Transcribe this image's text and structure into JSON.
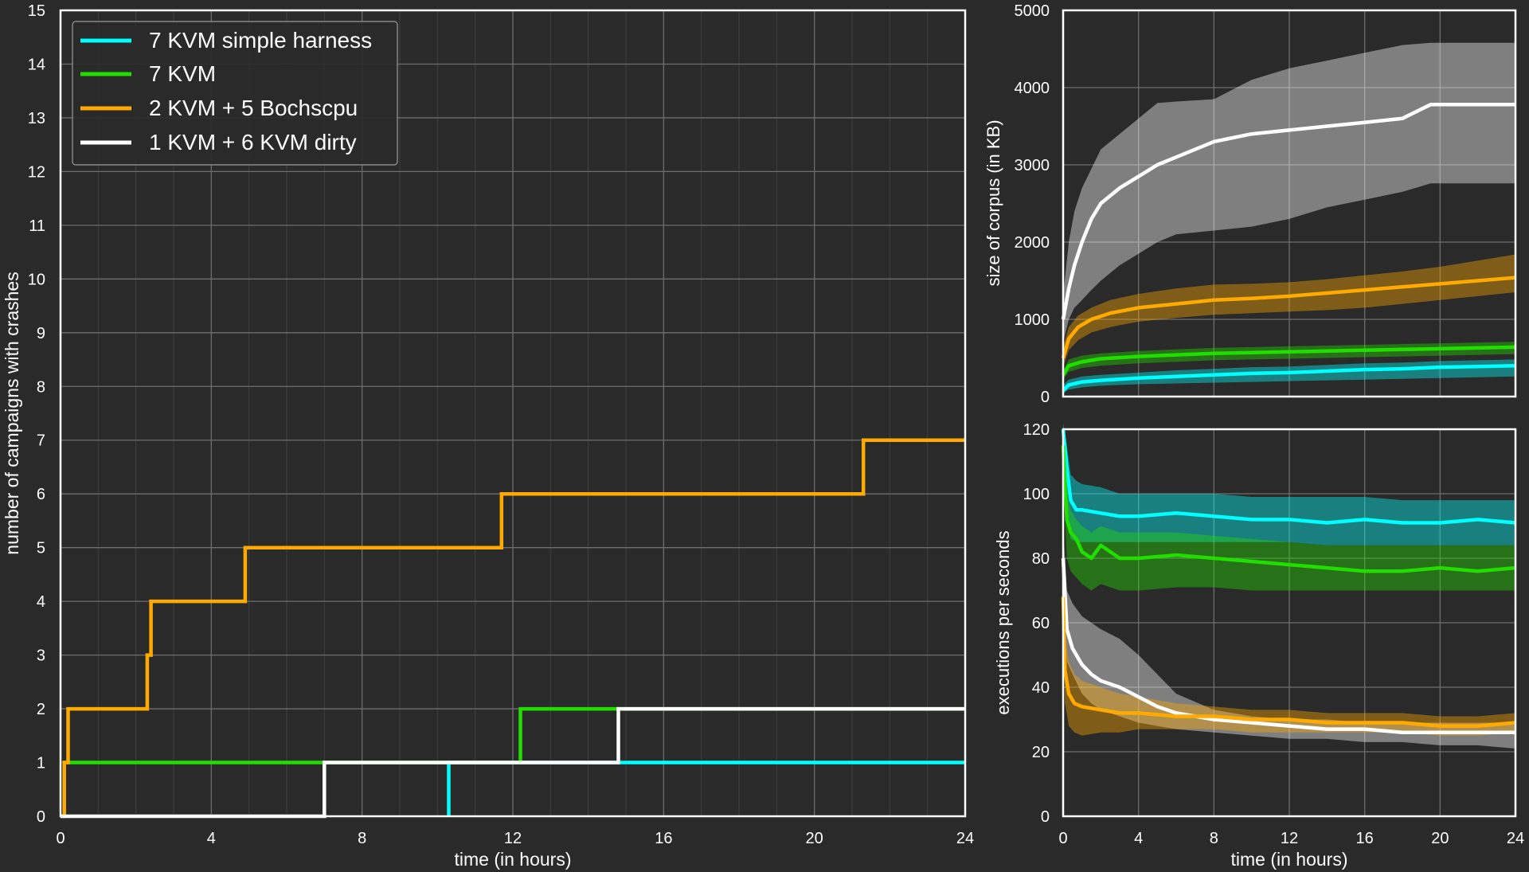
{
  "chart_data": [
    {
      "type": "line",
      "step": true,
      "xlabel": "time (in hours)",
      "ylabel": "number of campaigns with crashes",
      "xlim": [
        0,
        24
      ],
      "ylim": [
        0,
        15
      ],
      "xticks": [
        0,
        4,
        8,
        12,
        16,
        20,
        24
      ],
      "yticks": [
        0,
        1,
        2,
        3,
        4,
        5,
        6,
        7,
        8,
        9,
        10,
        11,
        12,
        13,
        14,
        15
      ],
      "grid": true,
      "legend_position": "top-left",
      "legend": [
        "7 KVM simple harness",
        "7 KVM",
        "2 KVM + 5 Bochscpu",
        "1 KVM + 6 KVM dirty"
      ],
      "series": [
        {
          "name": "7 KVM simple harness",
          "color": "#00ffff",
          "points": [
            [
              10.3,
              0
            ],
            [
              10.3,
              1
            ],
            [
              24,
              1
            ]
          ]
        },
        {
          "name": "7 KVM",
          "color": "#22dd00",
          "points": [
            [
              0.1,
              0
            ],
            [
              0.1,
              1
            ],
            [
              12.2,
              1
            ],
            [
              12.2,
              2
            ],
            [
              24,
              2
            ]
          ]
        },
        {
          "name": "2 KVM + 5 Bochscpu",
          "color": "#ffaa00",
          "points": [
            [
              0,
              0
            ],
            [
              0.1,
              0
            ],
            [
              0.1,
              1
            ],
            [
              0.2,
              1
            ],
            [
              0.2,
              2
            ],
            [
              2.3,
              2
            ],
            [
              2.3,
              3
            ],
            [
              2.4,
              3
            ],
            [
              2.4,
              4
            ],
            [
              4.9,
              4
            ],
            [
              4.9,
              5
            ],
            [
              11.7,
              5
            ],
            [
              11.7,
              6
            ],
            [
              21.3,
              6
            ],
            [
              21.3,
              7
            ],
            [
              24,
              7
            ]
          ]
        },
        {
          "name": "1 KVM + 6 KVM dirty",
          "color": "#ffffff",
          "points": [
            [
              0,
              0
            ],
            [
              7.0,
              0
            ],
            [
              7.0,
              1
            ],
            [
              14.8,
              1
            ],
            [
              14.8,
              2
            ],
            [
              24,
              2
            ]
          ]
        }
      ]
    },
    {
      "type": "line",
      "ylabel": "size of corpus (in KB)",
      "xlim": [
        0,
        24
      ],
      "ylim": [
        0,
        5000
      ],
      "yticks": [
        0,
        1000,
        2000,
        3000,
        4000,
        5000
      ],
      "grid": true,
      "series": [
        {
          "name": "1 KVM + 6 KVM dirty",
          "color": "#ffffff",
          "x": [
            0,
            0.3,
            0.6,
            1,
            1.5,
            2,
            3,
            4,
            5,
            6,
            8,
            10,
            12,
            14,
            16,
            18,
            19.5,
            24
          ],
          "y": [
            1000,
            1400,
            1700,
            2000,
            2300,
            2500,
            2700,
            2850,
            3000,
            3100,
            3300,
            3400,
            3450,
            3500,
            3550,
            3600,
            3780,
            3780
          ],
          "low": [
            700,
            1000,
            1150,
            1250,
            1380,
            1500,
            1700,
            1850,
            2000,
            2100,
            2150,
            2200,
            2300,
            2450,
            2550,
            2650,
            2760,
            2760
          ],
          "high": [
            1300,
            2000,
            2400,
            2700,
            2950,
            3200,
            3400,
            3600,
            3800,
            3820,
            3850,
            4100,
            4250,
            4350,
            4450,
            4550,
            4580,
            4580
          ]
        },
        {
          "name": "2 KVM + 5 Bochscpu",
          "color": "#ffaa00",
          "x": [
            0,
            0.3,
            0.8,
            1.5,
            2.5,
            4,
            6,
            8,
            10,
            12,
            14,
            16,
            18,
            20,
            22,
            24
          ],
          "y": [
            500,
            750,
            900,
            1000,
            1080,
            1150,
            1200,
            1250,
            1270,
            1300,
            1340,
            1380,
            1420,
            1460,
            1500,
            1540
          ],
          "low": [
            380,
            600,
            730,
            830,
            900,
            970,
            1020,
            1060,
            1080,
            1100,
            1120,
            1150,
            1200,
            1250,
            1300,
            1350
          ],
          "high": [
            650,
            900,
            1050,
            1150,
            1250,
            1330,
            1400,
            1450,
            1460,
            1480,
            1520,
            1570,
            1620,
            1680,
            1760,
            1840
          ]
        },
        {
          "name": "7 KVM",
          "color": "#22dd00",
          "x": [
            0,
            0.3,
            1,
            2,
            4,
            6,
            8,
            10,
            12,
            14,
            16,
            18,
            20,
            22,
            24
          ],
          "y": [
            280,
            400,
            450,
            490,
            520,
            540,
            560,
            570,
            580,
            590,
            600,
            610,
            620,
            630,
            640
          ],
          "low": [
            220,
            320,
            370,
            400,
            430,
            450,
            470,
            480,
            490,
            500,
            510,
            520,
            530,
            540,
            550
          ],
          "high": [
            340,
            480,
            530,
            560,
            590,
            610,
            630,
            640,
            650,
            660,
            670,
            680,
            690,
            700,
            710
          ]
        },
        {
          "name": "7 KVM simple harness",
          "color": "#00ffff",
          "x": [
            0,
            0.3,
            1,
            2,
            4,
            6,
            8,
            10,
            12,
            14,
            16,
            18,
            20,
            22,
            24
          ],
          "y": [
            80,
            150,
            190,
            210,
            240,
            260,
            280,
            300,
            310,
            330,
            350,
            360,
            380,
            390,
            400
          ],
          "low": [
            40,
            90,
            120,
            140,
            160,
            170,
            180,
            190,
            200,
            210,
            220,
            230,
            240,
            250,
            260
          ],
          "high": [
            150,
            220,
            260,
            280,
            310,
            340,
            360,
            380,
            390,
            410,
            430,
            440,
            460,
            470,
            480
          ]
        }
      ]
    },
    {
      "type": "line",
      "xlabel": "time (in hours)",
      "ylabel": "executions per seconds",
      "xlim": [
        0,
        24
      ],
      "ylim": [
        0,
        120
      ],
      "xticks": [
        0,
        4,
        8,
        12,
        16,
        20,
        24
      ],
      "yticks": [
        0,
        20,
        40,
        60,
        80,
        100,
        120
      ],
      "grid": true,
      "series": [
        {
          "name": "7 KVM simple harness",
          "color": "#00ffff",
          "x": [
            0,
            0.2,
            0.4,
            0.7,
            1,
            2,
            3,
            4,
            6,
            8,
            10,
            12,
            14,
            16,
            18,
            20,
            22,
            24
          ],
          "y": [
            120,
            108,
            98,
            95,
            95,
            94,
            93,
            93,
            94,
            93,
            92,
            92,
            91,
            92,
            91,
            91,
            92,
            91
          ],
          "low": [
            110,
            95,
            86,
            85,
            85,
            85,
            85,
            85,
            85,
            85,
            85,
            85,
            84,
            84,
            84,
            84,
            84,
            84
          ],
          "high": [
            122,
            115,
            106,
            104,
            103,
            102,
            100,
            100,
            100,
            100,
            99,
            99,
            99,
            99,
            98,
            98,
            98,
            98
          ]
        },
        {
          "name": "7 KVM",
          "color": "#22dd00",
          "x": [
            0,
            0.2,
            0.4,
            0.7,
            1,
            1.5,
            2,
            3,
            4,
            6,
            8,
            10,
            12,
            14,
            16,
            18,
            20,
            22,
            24
          ],
          "y": [
            115,
            92,
            88,
            86,
            82,
            80,
            84,
            80,
            80,
            81,
            80,
            79,
            78,
            77,
            76,
            76,
            77,
            76,
            77
          ],
          "low": [
            105,
            80,
            76,
            74,
            72,
            70,
            72,
            70,
            70,
            71,
            71,
            70,
            70,
            70,
            70,
            70,
            70,
            70,
            70
          ],
          "high": [
            120,
            100,
            95,
            92,
            90,
            88,
            90,
            88,
            88,
            88,
            87,
            86,
            85,
            84,
            84,
            84,
            84,
            84,
            84
          ]
        },
        {
          "name": "1 KVM + 6 KVM dirty",
          "color": "#ffffff",
          "x": [
            0,
            0.2,
            0.5,
            1,
            1.5,
            2,
            3,
            4,
            5,
            6,
            8,
            10,
            12,
            14,
            16,
            18,
            20,
            22,
            24
          ],
          "y": [
            80,
            58,
            52,
            47,
            44,
            42,
            40,
            37,
            34,
            32,
            30,
            29,
            28,
            27,
            27,
            26,
            26,
            26,
            26
          ],
          "low": [
            68,
            48,
            44,
            38,
            35,
            33,
            31,
            29,
            28,
            27,
            26,
            25,
            24,
            24,
            23,
            23,
            22,
            22,
            21
          ],
          "high": [
            90,
            70,
            66,
            62,
            60,
            58,
            55,
            50,
            44,
            38,
            33,
            31,
            30,
            30,
            29,
            29,
            29,
            29,
            29
          ]
        },
        {
          "name": "2 KVM + 5 Bochscpu",
          "color": "#ffaa00",
          "x": [
            0,
            0.1,
            0.3,
            0.6,
            1,
            2,
            3,
            4,
            6,
            8,
            10,
            12,
            14,
            16,
            18,
            20,
            22,
            24
          ],
          "y": [
            68,
            45,
            38,
            35,
            34,
            33,
            32,
            32,
            31,
            31,
            30,
            30,
            29,
            29,
            29,
            28,
            28,
            29
          ],
          "low": [
            55,
            35,
            28,
            26,
            25,
            26,
            26,
            27,
            27,
            27,
            26,
            26,
            26,
            26,
            26,
            25,
            25,
            26
          ],
          "high": [
            80,
            55,
            48,
            44,
            42,
            40,
            38,
            37,
            35,
            34,
            33,
            33,
            32,
            32,
            32,
            31,
            31,
            32
          ]
        }
      ]
    }
  ]
}
